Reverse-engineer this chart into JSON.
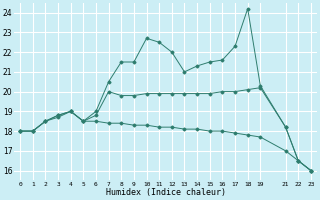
{
  "xlabel": "Humidex (Indice chaleur)",
  "bg_color": "#cceef5",
  "grid_color": "#ffffff",
  "line_color": "#2e7d6e",
  "xlim": [
    -0.5,
    23.5
  ],
  "ylim": [
    15.5,
    24.5
  ],
  "xticks": [
    0,
    1,
    2,
    3,
    4,
    5,
    6,
    7,
    8,
    9,
    10,
    11,
    12,
    13,
    14,
    15,
    16,
    17,
    18,
    19,
    21,
    22,
    23
  ],
  "yticks": [
    16,
    17,
    18,
    19,
    20,
    21,
    22,
    23,
    24
  ],
  "series1": [
    [
      0,
      18.0
    ],
    [
      1,
      18.0
    ],
    [
      2,
      18.5
    ],
    [
      3,
      18.7
    ],
    [
      4,
      19.0
    ],
    [
      5,
      18.5
    ],
    [
      6,
      19.0
    ],
    [
      7,
      20.5
    ],
    [
      8,
      21.5
    ],
    [
      9,
      21.5
    ],
    [
      10,
      22.7
    ],
    [
      11,
      22.5
    ],
    [
      12,
      22.0
    ],
    [
      13,
      21.0
    ],
    [
      14,
      21.3
    ],
    [
      15,
      21.5
    ],
    [
      16,
      21.6
    ],
    [
      17,
      22.3
    ],
    [
      18,
      24.2
    ],
    [
      19,
      20.3
    ],
    [
      21,
      18.2
    ],
    [
      22,
      16.5
    ],
    [
      23,
      16.0
    ]
  ],
  "series2": [
    [
      0,
      18.0
    ],
    [
      1,
      18.0
    ],
    [
      2,
      18.5
    ],
    [
      3,
      18.8
    ],
    [
      4,
      19.0
    ],
    [
      5,
      18.5
    ],
    [
      6,
      18.8
    ],
    [
      7,
      20.0
    ],
    [
      8,
      19.8
    ],
    [
      9,
      19.8
    ],
    [
      10,
      19.9
    ],
    [
      11,
      19.9
    ],
    [
      12,
      19.9
    ],
    [
      13,
      19.9
    ],
    [
      14,
      19.9
    ],
    [
      15,
      19.9
    ],
    [
      16,
      20.0
    ],
    [
      17,
      20.0
    ],
    [
      18,
      20.1
    ],
    [
      19,
      20.2
    ],
    [
      21,
      18.2
    ],
    [
      22,
      16.5
    ],
    [
      23,
      16.0
    ]
  ],
  "series3": [
    [
      0,
      18.0
    ],
    [
      1,
      18.0
    ],
    [
      2,
      18.5
    ],
    [
      3,
      18.8
    ],
    [
      4,
      19.0
    ],
    [
      5,
      18.5
    ],
    [
      6,
      18.5
    ],
    [
      7,
      18.4
    ],
    [
      8,
      18.4
    ],
    [
      9,
      18.3
    ],
    [
      10,
      18.3
    ],
    [
      11,
      18.2
    ],
    [
      12,
      18.2
    ],
    [
      13,
      18.1
    ],
    [
      14,
      18.1
    ],
    [
      15,
      18.0
    ],
    [
      16,
      18.0
    ],
    [
      17,
      17.9
    ],
    [
      18,
      17.8
    ],
    [
      19,
      17.7
    ],
    [
      21,
      17.0
    ],
    [
      22,
      16.5
    ],
    [
      23,
      16.0
    ]
  ]
}
